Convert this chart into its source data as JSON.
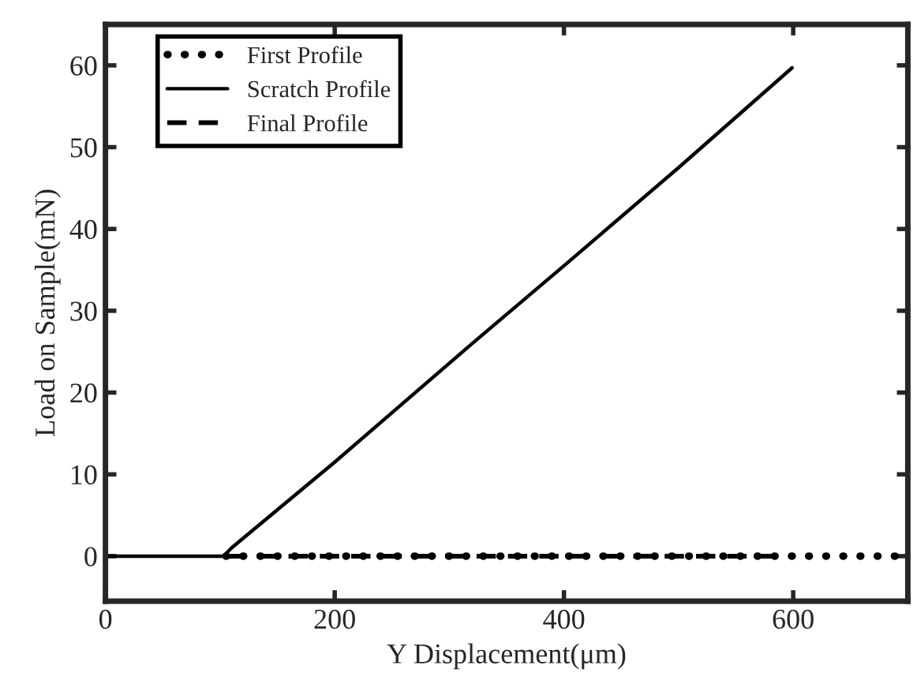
{
  "chart_data": {
    "type": "line",
    "xlabel": "Y Displacement(μm)",
    "ylabel": "Load on Sample(mN)",
    "xlim": [
      0,
      700
    ],
    "xticks": [
      0,
      200,
      400,
      600
    ],
    "ylim": [
      -5.5,
      65
    ],
    "yticks": [
      0,
      10,
      20,
      30,
      40,
      50,
      60
    ],
    "grid": false,
    "legend": "top left",
    "series": [
      {
        "name": "First Profile",
        "color": "#000000",
        "line_style": "dotted",
        "x": [
          105,
          690
        ],
        "values": [
          0,
          0
        ]
      },
      {
        "name": "Scratch Profile",
        "color": "#000000",
        "line_style": "solid",
        "x": [
          0,
          103,
          110,
          200,
          320,
          400,
          500,
          599
        ],
        "values": [
          0,
          0,
          1,
          11.5,
          26,
          35.5,
          47.5,
          59.7
        ]
      },
      {
        "name": "Final Profile",
        "color": "#000000",
        "line_style": "dashed",
        "x": [
          105,
          600
        ],
        "values": [
          0,
          0
        ]
      }
    ]
  }
}
